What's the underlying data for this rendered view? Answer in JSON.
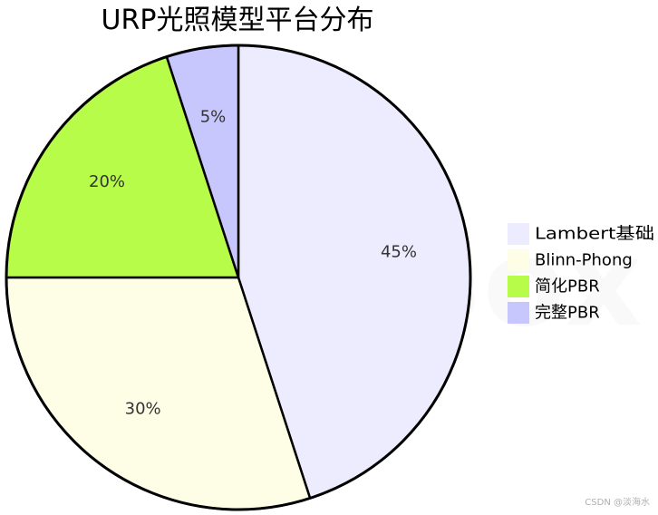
{
  "chart_data": {
    "type": "pie",
    "title": "URP光照模型平台分布",
    "categories": [
      "Lambert基础",
      "Blinn-Phong",
      "简化PBR",
      "完整PBR"
    ],
    "values": [
      45,
      30,
      20,
      5
    ],
    "labels": [
      "45%",
      "30%",
      "20%",
      "5%"
    ],
    "colors": [
      "#ececfe",
      "#fefee6",
      "#b8fc4a",
      "#c7c7fd"
    ],
    "edge_color": "#000000",
    "legend_position": "right",
    "start_angle": "12 o'clock",
    "direction": "clockwise"
  },
  "watermark": "SmallBox",
  "credit": "CSDN @淡海水"
}
